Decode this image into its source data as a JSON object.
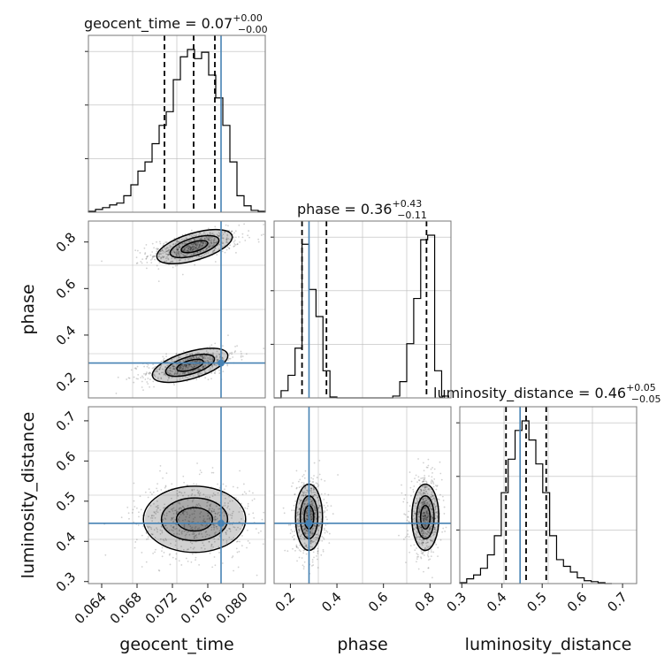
{
  "colors": {
    "truth": "#4682b4",
    "hist": "#000000",
    "grid": "#bbbbbb",
    "frame": "#777777"
  },
  "chart_data": {
    "type": "corner",
    "parameters": [
      "geocent_time",
      "phase",
      "luminosity_distance"
    ],
    "titles": [
      {
        "param": "geocent_time",
        "prefix": "geocent_time = 0.07",
        "sup": "+0.00",
        "sub": "−0.00"
      },
      {
        "param": "phase",
        "prefix": "phase = 0.36",
        "sup": "+0.43",
        "sub": "−0.11"
      },
      {
        "param": "luminosity_distance",
        "prefix": "luminosity_distance = 0.46",
        "sup": "+0.05",
        "sub": "−0.05"
      }
    ],
    "axis_labels": [
      "geocent_time",
      "phase",
      "luminosity_distance"
    ],
    "ranges": {
      "geocent_time": [
        0.0625,
        0.0825
      ],
      "phase": [
        0.13,
        0.89
      ],
      "luminosity_distance": [
        0.295,
        0.735
      ]
    },
    "ticks": {
      "geocent_time": [
        "0.064",
        "0.068",
        "0.072",
        "0.076",
        "0.080"
      ],
      "phase_x": [
        "0.2",
        "0.4",
        "0.6",
        "0.8"
      ],
      "phase_y": [
        "0.2",
        "0.4",
        "0.6",
        "0.8"
      ],
      "luminosity_distance_x": [
        "0.3",
        "0.4",
        "0.5",
        "0.6",
        "0.7"
      ],
      "luminosity_distance_y": [
        "0.3",
        "0.4",
        "0.5",
        "0.6",
        "0.7"
      ]
    },
    "truths": {
      "geocent_time": 0.0775,
      "phase": 0.28,
      "luminosity_distance": 0.445
    },
    "quantiles": {
      "geocent_time": [
        0.0711,
        0.0744,
        0.0768
      ],
      "phase": [
        0.25,
        0.355,
        0.785
      ],
      "luminosity_distance": [
        0.41,
        0.46,
        0.51
      ]
    },
    "histograms": {
      "geocent_time": {
        "edges": [
          0.0625,
          0.0633,
          0.0641,
          0.0649,
          0.0657,
          0.0665,
          0.0673,
          0.0681,
          0.0689,
          0.0697,
          0.0705,
          0.0713,
          0.0721,
          0.0729,
          0.0737,
          0.0745,
          0.0753,
          0.0761,
          0.0769,
          0.0777,
          0.0785,
          0.0793,
          0.0801,
          0.0809,
          0.0817,
          0.0825
        ],
        "counts": [
          1,
          3,
          5,
          8,
          10,
          18,
          30,
          45,
          55,
          75,
          95,
          110,
          145,
          170,
          178,
          168,
          175,
          150,
          125,
          95,
          55,
          18,
          7,
          2,
          1
        ]
      },
      "phase": {
        "edges": [
          0.13,
          0.16,
          0.19,
          0.22,
          0.25,
          0.28,
          0.31,
          0.34,
          0.37,
          0.4,
          0.43,
          0.46,
          0.49,
          0.52,
          0.55,
          0.58,
          0.61,
          0.64,
          0.67,
          0.7,
          0.73,
          0.76,
          0.79,
          0.82,
          0.85,
          0.88
        ],
        "counts": [
          0,
          8,
          25,
          55,
          170,
          120,
          90,
          30,
          1,
          0,
          0,
          0,
          0,
          0,
          0,
          0,
          0,
          2,
          18,
          60,
          110,
          175,
          180,
          30,
          2
        ]
      },
      "luminosity_distance": {
        "edges": [
          0.295,
          0.3122,
          0.3294,
          0.3466,
          0.3638,
          0.381,
          0.3982,
          0.4154,
          0.4326,
          0.4498,
          0.467,
          0.4842,
          0.5014,
          0.5186,
          0.5358,
          0.553,
          0.5702,
          0.5874,
          0.6046,
          0.6218,
          0.639,
          0.6562,
          0.6734
        ],
        "counts": [
          1,
          5,
          9,
          16,
          30,
          50,
          95,
          130,
          160,
          170,
          150,
          125,
          95,
          50,
          25,
          18,
          12,
          6,
          3,
          2,
          1,
          0
        ]
      }
    },
    "density_modes": {
      "phase_vs_geocent_time": [
        {
          "geocent_time": 0.0745,
          "phase": 0.78
        },
        {
          "geocent_time": 0.074,
          "phase": 0.27
        }
      ],
      "luminosity_distance_vs_geocent_time": [
        {
          "geocent_time": 0.0745,
          "luminosity_distance": 0.455
        }
      ],
      "luminosity_distance_vs_phase": [
        {
          "phase": 0.28,
          "luminosity_distance": 0.46
        },
        {
          "phase": 0.78,
          "luminosity_distance": 0.46
        }
      ]
    },
    "grid": true
  }
}
